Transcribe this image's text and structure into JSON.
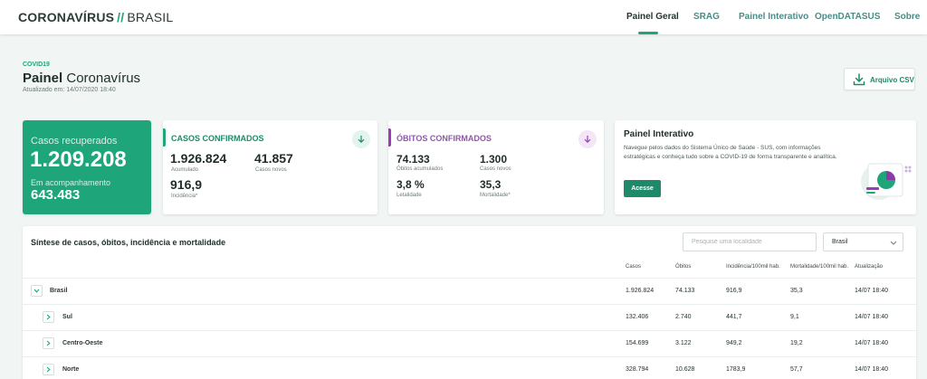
{
  "header": {
    "brand_part1": "CORONAVÍRUS",
    "brand_slash": "//",
    "brand_part2": "BRASIL",
    "nav": [
      "Painel Geral",
      "SRAG",
      "Painel Interativo",
      "OpenDATASUS",
      "Sobre"
    ],
    "active_nav": "Painel Geral"
  },
  "page": {
    "tag": "COVID19",
    "title_strong": "Painel",
    "title_rest": "Coronavírus",
    "updated": "Atualizado em: 14/07/2020 18:40",
    "csv_button": "Arquivo CSV"
  },
  "recovered": {
    "title": "Casos recuperados",
    "value": "1.209.208",
    "sub_label": "Em acompanhamento",
    "sub_value": "643.483"
  },
  "confirmed": {
    "title": "CASOS CONFIRMADOS",
    "accumulated": "1.926.824",
    "accumulated_label": "Acumulado",
    "new": "41.857",
    "new_label": "Casos novos",
    "incidence": "916,9",
    "incidence_label": "Incidência*"
  },
  "deaths": {
    "title": "ÓBITOS CONFIRMADOS",
    "accumulated": "74.133",
    "accumulated_label": "Óbitos acumulados",
    "new": "1.300",
    "new_label": "Casos novos",
    "lethality": "3,8 %",
    "lethality_label": "Letalidade",
    "mortality": "35,3",
    "mortality_label": "Mortalidade*"
  },
  "interactive": {
    "title": "Painel Interativo",
    "description": "Navegue pelos dados do Sistema Único de Saúde - SUS, com informações estratégicas e conheça tudo sobre a COVID-19 de forma transparente e analítica.",
    "button": "Acesse"
  },
  "table": {
    "title": "Síntese de casos, óbitos, incidência e mortalidade",
    "search_placeholder": "Pesquise uma localidade",
    "select_value": "Brasil",
    "headers": [
      "Casos",
      "Óbitos",
      "Incidência/100mil hab.",
      "Mortalidade/100mil hab.",
      "Atualização"
    ],
    "rows": [
      {
        "name": "Brasil",
        "casos": "1.926.824",
        "obitos": "74.133",
        "incidencia": "916,9",
        "mortalidade": "35,3",
        "atualizacao": "14/07 18:40"
      },
      {
        "name": "Sul",
        "casos": "132.406",
        "obitos": "2.740",
        "incidencia": "441,7",
        "mortalidade": "9,1",
        "atualizacao": "14/07 18:40"
      },
      {
        "name": "Centro-Oeste",
        "casos": "154.699",
        "obitos": "3.122",
        "incidencia": "949,2",
        "mortalidade": "19,2",
        "atualizacao": "14/07 18:40"
      },
      {
        "name": "Norte",
        "casos": "328.794",
        "obitos": "10.628",
        "incidencia": "1783,9",
        "mortalidade": "57,7",
        "atualizacao": "14/07 18:40"
      }
    ]
  },
  "colors": {
    "accent_green": "#1fa57a",
    "confirmed_accent": "#1fa57a",
    "deaths_accent": "#9b3bb8",
    "page_bg": "#f1f6f5"
  },
  "icons": {
    "csv": "download-icon",
    "confirmed": "arrow-down-icon",
    "deaths": "arrow-down-icon",
    "select": "chevron-down-icon",
    "row_expanded": "chevron-down-icon",
    "row_collapsed": "chevron-right-icon"
  }
}
